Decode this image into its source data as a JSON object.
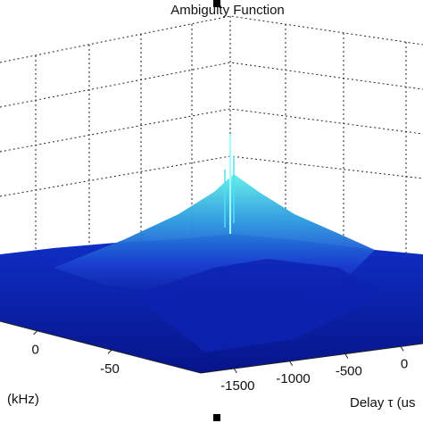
{
  "chart_data": {
    "type": "surface",
    "title": "Ambiguity Function",
    "xlabel": "Delay τ (us",
    "ylabel": "(kHz)",
    "xlim": [
      -1800,
      200
    ],
    "xticks": [
      -1500,
      -1000,
      -500,
      0
    ],
    "ylim": [
      -110,
      25
    ],
    "yticks": [
      0,
      -50
    ],
    "grid": true
  }
}
